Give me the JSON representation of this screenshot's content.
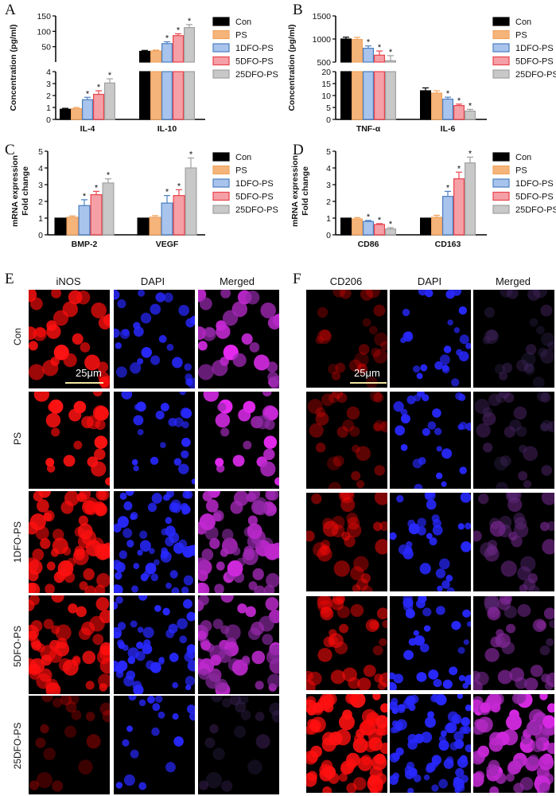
{
  "panels": {
    "A": "A",
    "B": "B",
    "C": "C",
    "D": "D",
    "E": "E",
    "F": "F"
  },
  "legend": [
    "Con",
    "PS",
    "1DFO-PS",
    "5DFO-PS",
    "25DFO-PS"
  ],
  "colors": [
    "#000000",
    "#f0a35e",
    "#4a7ec0",
    "#e8444c",
    "#a0a0a0"
  ],
  "fills": [
    "#000000",
    "#f5b47a",
    "#a9c4ec",
    "#f4a0a6",
    "#c8c8c8"
  ],
  "sig_marker": "*",
  "chart_data": [
    {
      "id": "A",
      "type": "bar",
      "ylabel": "Concentration (pg/ml)",
      "categories": [
        "IL-4",
        "IL-10"
      ],
      "broken_axis": true,
      "lower_ticks": [
        "0",
        "1",
        "2",
        "3",
        "4"
      ],
      "upper_ticks": [
        "50",
        "100",
        "150"
      ],
      "lower_range": [
        0,
        4
      ],
      "upper_range": [
        0,
        150
      ],
      "series": [
        {
          "name": "Con",
          "values": [
            0.85,
            35
          ],
          "err": [
            0.08,
            3
          ],
          "sig": [
            false,
            false
          ]
        },
        {
          "name": "PS",
          "values": [
            0.9,
            36
          ],
          "err": [
            0.1,
            3
          ],
          "sig": [
            false,
            false
          ]
        },
        {
          "name": "1DFO-PS",
          "values": [
            1.65,
            60
          ],
          "err": [
            0.2,
            6
          ],
          "sig": [
            true,
            true
          ]
        },
        {
          "name": "5DFO-PS",
          "values": [
            2.1,
            86
          ],
          "err": [
            0.3,
            6
          ],
          "sig": [
            true,
            true
          ]
        },
        {
          "name": "25DFO-PS",
          "values": [
            3.05,
            112
          ],
          "err": [
            0.35,
            10
          ],
          "sig": [
            true,
            true
          ]
        }
      ]
    },
    {
      "id": "B",
      "type": "bar",
      "ylabel": "Concentration (pg/ml)",
      "categories": [
        "TNF-α",
        "IL-6"
      ],
      "broken_axis": true,
      "lower_ticks": [
        "0",
        "5",
        "10",
        "15",
        "20"
      ],
      "upper_ticks": [
        "500",
        "1000",
        "1500"
      ],
      "lower_range": [
        0,
        20
      ],
      "upper_range": [
        500,
        1500
      ],
      "series": [
        {
          "name": "Con",
          "values": [
            1000,
            12
          ],
          "err": [
            40,
            1.2
          ],
          "sig": [
            false,
            false
          ]
        },
        {
          "name": "PS",
          "values": [
            990,
            11
          ],
          "err": [
            45,
            1
          ],
          "sig": [
            false,
            false
          ]
        },
        {
          "name": "1DFO-PS",
          "values": [
            800,
            8.5
          ],
          "err": [
            50,
            0.8
          ],
          "sig": [
            true,
            true
          ]
        },
        {
          "name": "5DFO-PS",
          "values": [
            650,
            5.8
          ],
          "err": [
            90,
            0.6
          ],
          "sig": [
            true,
            true
          ]
        },
        {
          "name": "25DFO-PS",
          "values": [
            530,
            3.5
          ],
          "err": [
            110,
            0.7
          ],
          "sig": [
            true,
            true
          ]
        }
      ]
    },
    {
      "id": "C",
      "type": "bar",
      "ylabel": "mRNA expression Fold change",
      "ylabel_lines": [
        "mRNA expression",
        "Fold change"
      ],
      "categories": [
        "BMP-2",
        "VEGF"
      ],
      "ylim": [
        0,
        5
      ],
      "ticks": [
        "0",
        "1",
        "2",
        "3",
        "4",
        "5"
      ],
      "series": [
        {
          "name": "Con",
          "values": [
            1,
            1
          ],
          "err": [
            0,
            0
          ],
          "sig": [
            false,
            false
          ]
        },
        {
          "name": "PS",
          "values": [
            1.05,
            1.05
          ],
          "err": [
            0.08,
            0.1
          ],
          "sig": [
            false,
            false
          ]
        },
        {
          "name": "1DFO-PS",
          "values": [
            1.75,
            1.9
          ],
          "err": [
            0.35,
            0.45
          ],
          "sig": [
            true,
            true
          ]
        },
        {
          "name": "5DFO-PS",
          "values": [
            2.4,
            2.35
          ],
          "err": [
            0.2,
            0.35
          ],
          "sig": [
            true,
            true
          ]
        },
        {
          "name": "25DFO-PS",
          "values": [
            3.1,
            4.0
          ],
          "err": [
            0.25,
            0.6
          ],
          "sig": [
            true,
            true
          ]
        }
      ]
    },
    {
      "id": "D",
      "type": "bar",
      "ylabel": "mRNA expression Fold change",
      "ylabel_lines": [
        "mRNA expression",
        "Fold change"
      ],
      "categories": [
        "CD86",
        "CD163"
      ],
      "ylim": [
        0,
        5
      ],
      "ticks": [
        "0",
        "1",
        "2",
        "3",
        "4",
        "5"
      ],
      "series": [
        {
          "name": "Con",
          "values": [
            1,
            1
          ],
          "err": [
            0,
            0
          ],
          "sig": [
            false,
            false
          ]
        },
        {
          "name": "PS",
          "values": [
            0.95,
            1.05
          ],
          "err": [
            0.08,
            0.12
          ],
          "sig": [
            false,
            false
          ]
        },
        {
          "name": "1DFO-PS",
          "values": [
            0.8,
            2.3
          ],
          "err": [
            0.06,
            0.3
          ],
          "sig": [
            true,
            true
          ]
        },
        {
          "name": "5DFO-PS",
          "values": [
            0.62,
            3.35
          ],
          "err": [
            0.05,
            0.4
          ],
          "sig": [
            true,
            true
          ]
        },
        {
          "name": "25DFO-PS",
          "values": [
            0.35,
            4.3
          ],
          "err": [
            0.08,
            0.35
          ],
          "sig": [
            true,
            true
          ]
        }
      ]
    }
  ],
  "micrographs": {
    "E": {
      "columns": [
        "iNOS",
        "DAPI",
        "Merged"
      ],
      "rows": [
        "Con",
        "PS",
        "1DFO-PS",
        "5DFO-PS",
        "25DFO-PS"
      ],
      "scale": "25μm"
    },
    "F": {
      "columns": [
        "CD206",
        "DAPI",
        "Merged"
      ],
      "scale": "25μm"
    }
  }
}
